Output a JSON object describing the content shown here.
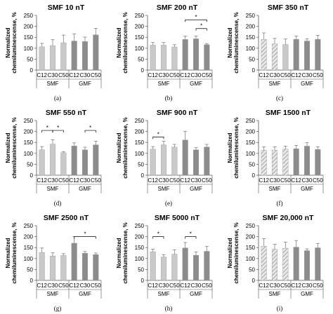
{
  "colors": {
    "smf_bar": "#c9c9c9",
    "gmf_bar": "#8c8c8c",
    "hatched_bar": "#c9c9c9",
    "error_bar": "#808080",
    "axis": "#555555",
    "significance": "#000000"
  },
  "chart_data": [
    {
      "type": "bar",
      "title": "SMF 10 nT",
      "ylabel": "Normalized chemiluminescense, %",
      "ylim": [
        0,
        250
      ],
      "yticks": [
        "0",
        "50",
        "100",
        "150",
        "200",
        "250"
      ],
      "categories": [
        "C12",
        "C30",
        "C50",
        "C12",
        "C30",
        "C50"
      ],
      "groups": [
        "SMF",
        "GMF"
      ],
      "values": [
        107,
        112,
        125,
        133,
        131,
        161
      ],
      "errors": [
        15,
        27,
        35,
        33,
        20,
        30
      ],
      "hatched": [
        false,
        false,
        false,
        false,
        false,
        false
      ],
      "significance": [],
      "label": "(a)"
    },
    {
      "type": "bar",
      "title": "SMF 200 nT",
      "ylabel": "Normalized chemiluminescense, %",
      "ylim": [
        0,
        250
      ],
      "yticks": [
        "0",
        "50",
        "100",
        "150",
        "200",
        "250"
      ],
      "categories": [
        "C12",
        "C30",
        "C50",
        "C12",
        "C30",
        "C50"
      ],
      "groups": [
        "SMF",
        "GMF"
      ],
      "values": [
        114,
        114,
        106,
        140,
        143,
        116
      ],
      "errors": [
        12,
        12,
        10,
        15,
        13,
        5
      ],
      "hatched": [
        false,
        false,
        false,
        false,
        false,
        false
      ],
      "significance": [
        {
          "from": 3,
          "to": 5,
          "level": 230,
          "label": "*"
        },
        {
          "from": 4,
          "to": 5,
          "level": 190,
          "label": "*"
        }
      ],
      "label": "(b)"
    },
    {
      "type": "bar",
      "title": "SMF 350 nT",
      "ylabel": "Normalized chemiluminescense, %",
      "ylim": [
        0,
        250
      ],
      "yticks": [
        "0",
        "50",
        "100",
        "150",
        "200",
        "250"
      ],
      "categories": [
        "C12",
        "C30",
        "C50",
        "C12",
        "C30",
        "C50"
      ],
      "groups": [
        "SMF",
        "GMF"
      ],
      "values": [
        140,
        120,
        117,
        141,
        133,
        141
      ],
      "errors": [
        30,
        25,
        25,
        15,
        10,
        18
      ],
      "hatched": [
        true,
        true,
        false,
        false,
        false,
        false
      ],
      "significance": [],
      "label": "(c)"
    },
    {
      "type": "bar",
      "title": "SMF 550 nT",
      "ylabel": "Normalized chemiluminescense, %",
      "ylim": [
        0,
        250
      ],
      "yticks": [
        "0",
        "50",
        "100",
        "150",
        "200",
        "250"
      ],
      "categories": [
        "C12",
        "C30",
        "C50",
        "C12",
        "C30",
        "C50"
      ],
      "groups": [
        "SMF",
        "GMF"
      ],
      "values": [
        116,
        142,
        103,
        134,
        116,
        139
      ],
      "errors": [
        15,
        20,
        5,
        14,
        12,
        17
      ],
      "hatched": [
        false,
        false,
        false,
        false,
        false,
        false
      ],
      "significance": [
        {
          "from": 0,
          "to": 1,
          "level": 205,
          "label": "*"
        },
        {
          "from": 1,
          "to": 2,
          "level": 205,
          "label": "*"
        },
        {
          "from": 4,
          "to": 5,
          "level": 205,
          "label": "*"
        }
      ],
      "label": "(d)"
    },
    {
      "type": "bar",
      "title": "SMF 900 nT",
      "ylabel": "Normalized chemiluminescense, %",
      "ylim": [
        0,
        250
      ],
      "yticks": [
        "0",
        "50",
        "100",
        "150",
        "200",
        "250"
      ],
      "categories": [
        "C12",
        "C30",
        "C50",
        "C12",
        "C30",
        "C50"
      ],
      "groups": [
        "SMF",
        "GMF"
      ],
      "values": [
        119,
        139,
        129,
        161,
        116,
        129
      ],
      "errors": [
        12,
        17,
        12,
        40,
        10,
        12
      ],
      "hatched": [
        false,
        false,
        false,
        false,
        false,
        false
      ],
      "significance": [
        {
          "from": 0,
          "to": 1,
          "level": 175,
          "label": "*"
        }
      ],
      "label": "(e)"
    },
    {
      "type": "bar",
      "title": "SMF 1500 nT",
      "ylabel": "Normalized chemiluminescense, %",
      "ylim": [
        0,
        250
      ],
      "yticks": [
        "0",
        "50",
        "100",
        "150",
        "200",
        "250"
      ],
      "categories": [
        "C12",
        "C30",
        "C50",
        "C12",
        "C30",
        "C50"
      ],
      "groups": [
        "SMF",
        "GMF"
      ],
      "values": [
        115,
        115,
        120,
        121,
        133,
        118
      ],
      "errors": [
        15,
        15,
        13,
        15,
        16,
        12
      ],
      "hatched": [
        true,
        true,
        true,
        false,
        false,
        false
      ],
      "significance": [],
      "label": "(f)"
    },
    {
      "type": "bar",
      "title": "SMF 2500 nT",
      "ylabel": "Normalized chemiluminescense, %",
      "ylim": [
        0,
        250
      ],
      "yticks": [
        "0",
        "50",
        "100",
        "150",
        "200",
        "250"
      ],
      "categories": [
        "C12",
        "C30",
        "C50",
        "C12",
        "C30",
        "C50"
      ],
      "groups": [
        "SMF",
        "GMF"
      ],
      "values": [
        128,
        111,
        114,
        170,
        124,
        118
      ],
      "errors": [
        20,
        15,
        8,
        30,
        8,
        7
      ],
      "hatched": [
        false,
        false,
        false,
        false,
        false,
        false
      ],
      "significance": [
        {
          "from": 3,
          "to": 5,
          "level": 200,
          "label": "*"
        }
      ],
      "label": "(g)"
    },
    {
      "type": "bar",
      "title": "SMF 5000 nT",
      "ylabel": "Normalized chemiluminescense, %",
      "ylim": [
        0,
        250
      ],
      "yticks": [
        "0",
        "50",
        "100",
        "150",
        "200",
        "250"
      ],
      "categories": [
        "C12",
        "C30",
        "C50",
        "C12",
        "C30",
        "C50"
      ],
      "groups": [
        "SMF",
        "GMF"
      ],
      "values": [
        131,
        107,
        120,
        148,
        115,
        133
      ],
      "errors": [
        12,
        10,
        20,
        25,
        15,
        22
      ],
      "hatched": [
        false,
        false,
        false,
        false,
        false,
        false
      ],
      "significance": [
        {
          "from": 0,
          "to": 1,
          "level": 200,
          "label": "*"
        },
        {
          "from": 3,
          "to": 4,
          "level": 200,
          "label": "*"
        }
      ],
      "label": "(h)"
    },
    {
      "type": "bar",
      "title": "SMF 20,000 nT",
      "ylabel": "Normalized chemiluminescense, %",
      "ylim": [
        0,
        250
      ],
      "yticks": [
        "0",
        "50",
        "100",
        "150",
        "200",
        "250"
      ],
      "categories": [
        "C12",
        "C30",
        "C50",
        "C12",
        "C30",
        "C50"
      ],
      "groups": [
        "SMF",
        "GMF"
      ],
      "values": [
        156,
        143,
        147,
        152,
        136,
        149
      ],
      "errors": [
        35,
        22,
        28,
        30,
        8,
        20
      ],
      "hatched": [
        true,
        true,
        true,
        false,
        false,
        false
      ],
      "significance": [],
      "label": "(i)"
    }
  ]
}
